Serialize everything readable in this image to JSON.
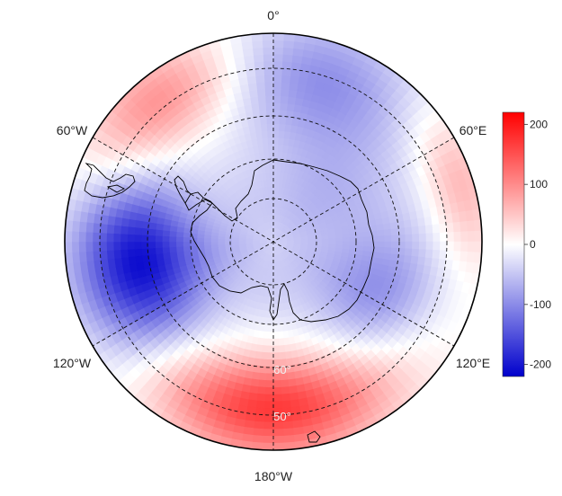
{
  "map": {
    "projection": "south-polar-stereographic",
    "longitude_labels": {
      "top": "0°",
      "upper_left": "60°W",
      "upper_right": "60°E",
      "lower_left": "120°W",
      "lower_right": "120°E",
      "bottom": "180°W"
    },
    "latitude_labels": [
      "60°",
      "50°"
    ],
    "field_pattern": "wave-3 anomaly: strong negative near 90-110°W, positive near 180° and 0-60°W, moderate negative near 0-30°E and 120°E"
  },
  "colorbar": {
    "min": -220,
    "max": 220,
    "ticks": [
      {
        "value": 200,
        "label": "200"
      },
      {
        "value": 100,
        "label": "100"
      },
      {
        "value": 0,
        "label": "0"
      },
      {
        "value": -100,
        "label": "-100"
      },
      {
        "value": -200,
        "label": "-200"
      }
    ],
    "colors": {
      "low": "#0000cc",
      "mid": "#ffffff",
      "high": "#ff0000"
    }
  }
}
